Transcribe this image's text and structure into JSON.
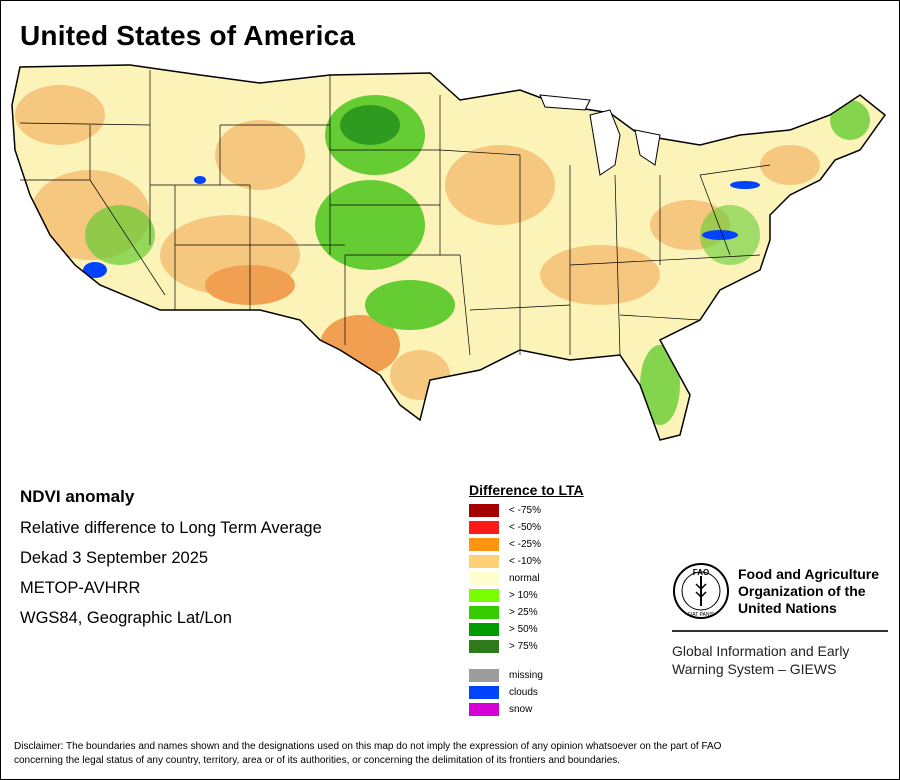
{
  "title": "United States of America",
  "info": {
    "heading": "NDVI anomaly",
    "line1": "Relative difference to Long Term Average",
    "line2": "Dekad 3 September 2025",
    "line3": "METOP-AVHRR",
    "line4": "WGS84, Geographic Lat/Lon"
  },
  "legend": {
    "title": "Difference to LTA",
    "items": [
      {
        "label": "< -75%",
        "color": "#a50000"
      },
      {
        "label": "< -50%",
        "color": "#ff1a1a"
      },
      {
        "label": "< -25%",
        "color": "#ff9410"
      },
      {
        "label": "< -10%",
        "color": "#ffcf73"
      },
      {
        "label": "normal",
        "color": "#ffffd0"
      },
      {
        "label": "> 10%",
        "color": "#77ff00"
      },
      {
        "label": "> 25%",
        "color": "#33cc00"
      },
      {
        "label": "> 50%",
        "color": "#009c00"
      },
      {
        "label": "> 75%",
        "color": "#2e7a1a"
      }
    ],
    "extra": [
      {
        "label": "missing",
        "color": "#9c9c9c"
      },
      {
        "label": "clouds",
        "color": "#0044ff"
      },
      {
        "label": "snow",
        "color": "#d400d4"
      }
    ]
  },
  "fao": {
    "name_line1": "Food and Agriculture",
    "name_line2": "Organization of the",
    "name_line3": "United Nations",
    "emblem_letters": "FAO",
    "emblem_motto": "FIAT PANIS",
    "giews_line1": "Global Information and Early",
    "giews_line2": "Warning System – GIEWS"
  },
  "disclaimer": {
    "line1": "Disclaimer: The boundaries and names shown and the designations used on this map do not imply the expression of any opinion whatsoever on the part of FAO",
    "line2": "concerning the legal status of any country, territory, area or of its authorities, or concerning the delimitation of its frontiers and boundaries."
  },
  "map_colors": {
    "normal": "#fbf3b8",
    "dry": "#f6c77e",
    "dry_strong": "#f0a050",
    "wet": "#66cc33",
    "wet_strong": "#2e9a20",
    "clouds": "#0044ff"
  }
}
